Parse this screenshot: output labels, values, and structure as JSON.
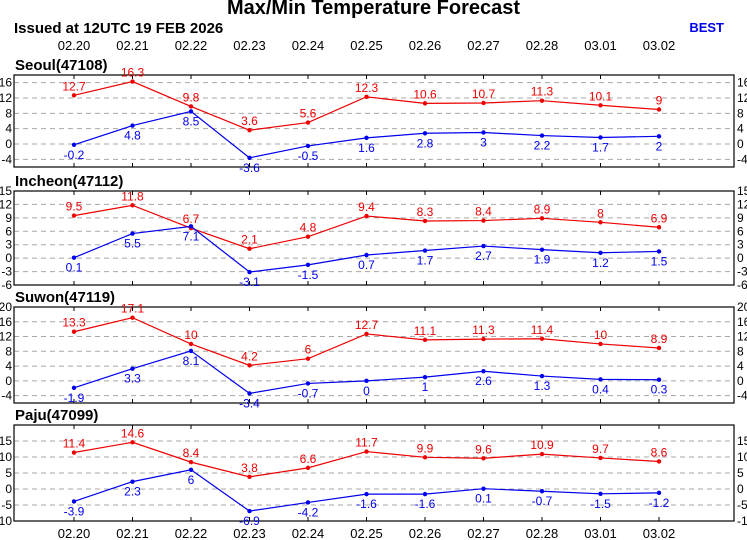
{
  "title": "Max/Min Temperature Forecast",
  "issued": "Issued at 12UTC 19 FEB 2026",
  "badge": "BEST",
  "colors": {
    "max": "#ee0000",
    "min": "#0000ee",
    "grid": "#a8a8a8"
  },
  "chart_data": [
    {
      "type": "line",
      "station": "Seoul(47108)",
      "categories": [
        "02.20",
        "02.21",
        "02.22",
        "02.23",
        "02.24",
        "02.25",
        "02.26",
        "02.27",
        "02.28",
        "03.01",
        "03.02"
      ],
      "ylim": [
        -6,
        18
      ],
      "yticks": [
        -4,
        0,
        4,
        8,
        12,
        16
      ],
      "series": [
        {
          "role": "max",
          "values": [
            12.7,
            16.3,
            9.8,
            3.6,
            5.6,
            12.3,
            10.6,
            10.7,
            11.3,
            10.1,
            9.0
          ]
        },
        {
          "role": "min",
          "values": [
            -0.2,
            4.8,
            8.5,
            -3.6,
            -0.5,
            1.6,
            2.8,
            3.0,
            2.2,
            1.7,
            2.0
          ]
        }
      ]
    },
    {
      "type": "line",
      "station": "Incheon(47112)",
      "categories": [
        "02.20",
        "02.21",
        "02.22",
        "02.23",
        "02.24",
        "02.25",
        "02.26",
        "02.27",
        "02.28",
        "03.01",
        "03.02"
      ],
      "ylim": [
        -6,
        15
      ],
      "yticks": [
        -6,
        -3,
        0,
        3,
        6,
        9,
        12,
        15
      ],
      "series": [
        {
          "role": "max",
          "values": [
            9.5,
            11.8,
            6.7,
            2.1,
            4.8,
            9.4,
            8.3,
            8.4,
            8.9,
            8.0,
            6.9
          ]
        },
        {
          "role": "min",
          "values": [
            0.1,
            5.5,
            7.1,
            -3.1,
            -1.5,
            0.7,
            1.7,
            2.7,
            1.9,
            1.2,
            1.5
          ]
        }
      ]
    },
    {
      "type": "line",
      "station": "Suwon(47119)",
      "categories": [
        "02.20",
        "02.21",
        "02.22",
        "02.23",
        "02.24",
        "02.25",
        "02.26",
        "02.27",
        "02.28",
        "03.01",
        "03.02"
      ],
      "ylim": [
        -6,
        20
      ],
      "yticks": [
        -4,
        0,
        4,
        8,
        12,
        16,
        20
      ],
      "series": [
        {
          "role": "max",
          "values": [
            13.3,
            17.1,
            10.0,
            4.2,
            6.0,
            12.7,
            11.1,
            11.3,
            11.4,
            10.0,
            8.9
          ]
        },
        {
          "role": "min",
          "values": [
            -1.9,
            3.3,
            8.1,
            -3.4,
            -0.7,
            0.0,
            1.0,
            2.6,
            1.3,
            0.4,
            0.3
          ]
        }
      ]
    },
    {
      "type": "line",
      "station": "Paju(47099)",
      "categories": [
        "02.20",
        "02.21",
        "02.22",
        "02.23",
        "02.24",
        "02.25",
        "02.26",
        "02.27",
        "02.28",
        "03.01",
        "03.02"
      ],
      "ylim": [
        -10,
        20
      ],
      "yticks": [
        -10,
        -5,
        0,
        5,
        10,
        15
      ],
      "series": [
        {
          "role": "max",
          "values": [
            11.4,
            14.6,
            8.4,
            3.8,
            6.6,
            11.7,
            9.9,
            9.6,
            10.9,
            9.7,
            8.6
          ]
        },
        {
          "role": "min",
          "values": [
            -3.9,
            2.3,
            6.0,
            -6.9,
            -4.2,
            -1.6,
            -1.6,
            0.1,
            -0.7,
            -1.5,
            -1.2
          ]
        }
      ]
    }
  ]
}
